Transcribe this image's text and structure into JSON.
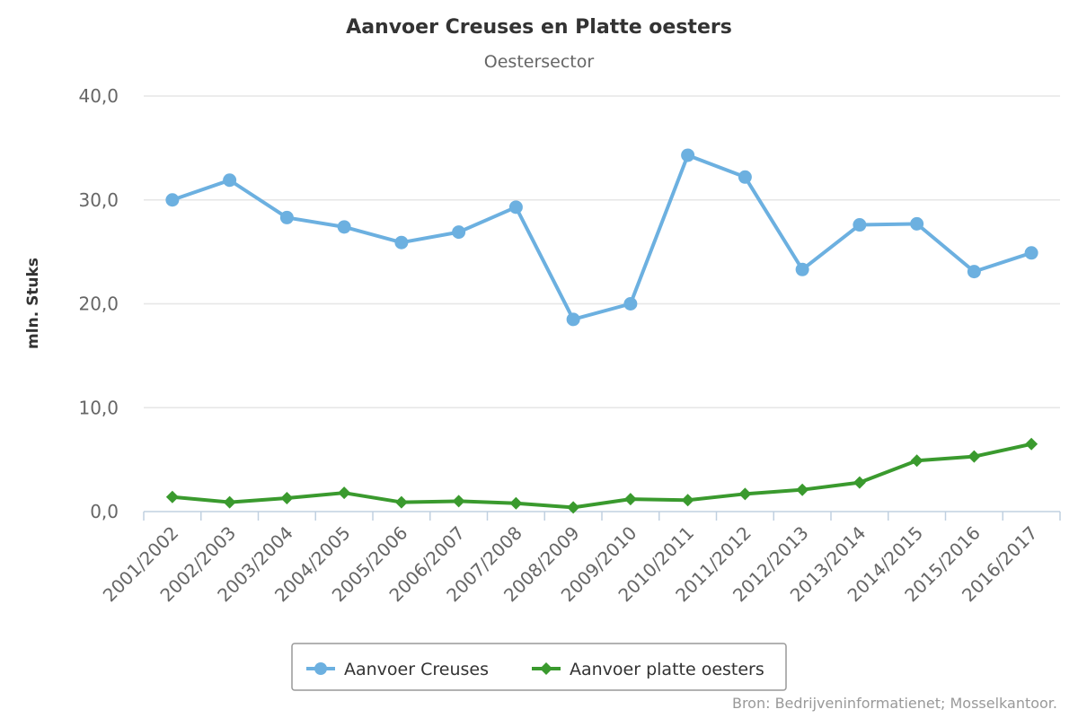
{
  "chart_data": {
    "type": "line",
    "title": "Aanvoer Creuses en Platte oesters",
    "subtitle": "Oestersector",
    "xlabel": "",
    "ylabel": "mln. Stuks",
    "ylim": [
      0,
      40
    ],
    "yticks": [
      "0,0",
      "10,0",
      "20,0",
      "30,0",
      "40,0"
    ],
    "ytick_values": [
      0,
      10,
      20,
      30,
      40
    ],
    "grid": true,
    "legend_position": "bottom-center",
    "categories": [
      "2001/2002",
      "2002/2003",
      "2003/2004",
      "2004/2005",
      "2005/2006",
      "2006/2007",
      "2007/2008",
      "2008/2009",
      "2009/2010",
      "2010/2011",
      "2011/2012",
      "2012/2013",
      "2013/2014",
      "2014/2015",
      "2015/2016",
      "2016/2017"
    ],
    "series": [
      {
        "name": "Aanvoer Creuses",
        "color": "#6cb0e0",
        "marker": "circle",
        "values": [
          30.0,
          31.9,
          28.3,
          27.4,
          25.9,
          26.9,
          29.3,
          18.5,
          20.0,
          34.3,
          32.2,
          23.3,
          27.6,
          27.7,
          23.1,
          24.9
        ]
      },
      {
        "name": "Aanvoer platte oesters",
        "color": "#3a9a2e",
        "marker": "diamond",
        "values": [
          1.4,
          0.9,
          1.3,
          1.8,
          0.9,
          1.0,
          0.8,
          0.4,
          1.2,
          1.1,
          1.7,
          2.1,
          2.8,
          4.9,
          5.3,
          6.5
        ]
      }
    ],
    "source": "Bron: Bedrijveninformatienet; Mosselkantoor."
  }
}
